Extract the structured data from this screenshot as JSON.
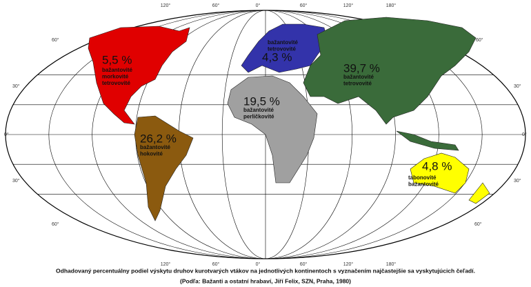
{
  "longitude_labels_top": [
    "120°",
    "60°",
    "0°",
    "60°",
    "120°",
    "180°"
  ],
  "longitude_labels_bottom": [
    "120°",
    "60°",
    "0°",
    "60°",
    "120°",
    "180°"
  ],
  "latitude_labels_left": [
    "60°",
    "30°",
    "0°",
    "30°",
    "60°"
  ],
  "latitude_labels_right": [
    "60°",
    "30°",
    "0°",
    "30°",
    "60°"
  ],
  "regions": [
    {
      "share": "5,5 %",
      "families": [
        "bažantovité",
        "morkovité",
        "tetrovovité"
      ]
    },
    {
      "share": "4,3 %",
      "families": [
        "bažantovité",
        "tetrovovité"
      ]
    },
    {
      "share": "39,7 %",
      "families": [
        "bažantovité",
        "tetrovovité"
      ]
    },
    {
      "share": "19,5 %",
      "families": [
        "bažantovité",
        "perličkovité"
      ]
    },
    {
      "share": "26,2 %",
      "families": [
        "bažantovité",
        "hokovité"
      ]
    },
    {
      "share": "4,8 %",
      "families": [
        "tabonovité",
        "bažantovité"
      ]
    }
  ],
  "caption": [
    "Odhadovaný percentuálny podiel výskytu druhov kurotvarých vtákov na jednotlivých kontinentoch s vyznačením najčastejšie sa vyskytujúcich čeľadí.",
    "(Podľa: Bažanti a ostatní hrabaví, Jiří Felix, SZN, Praha, 1980)"
  ]
}
